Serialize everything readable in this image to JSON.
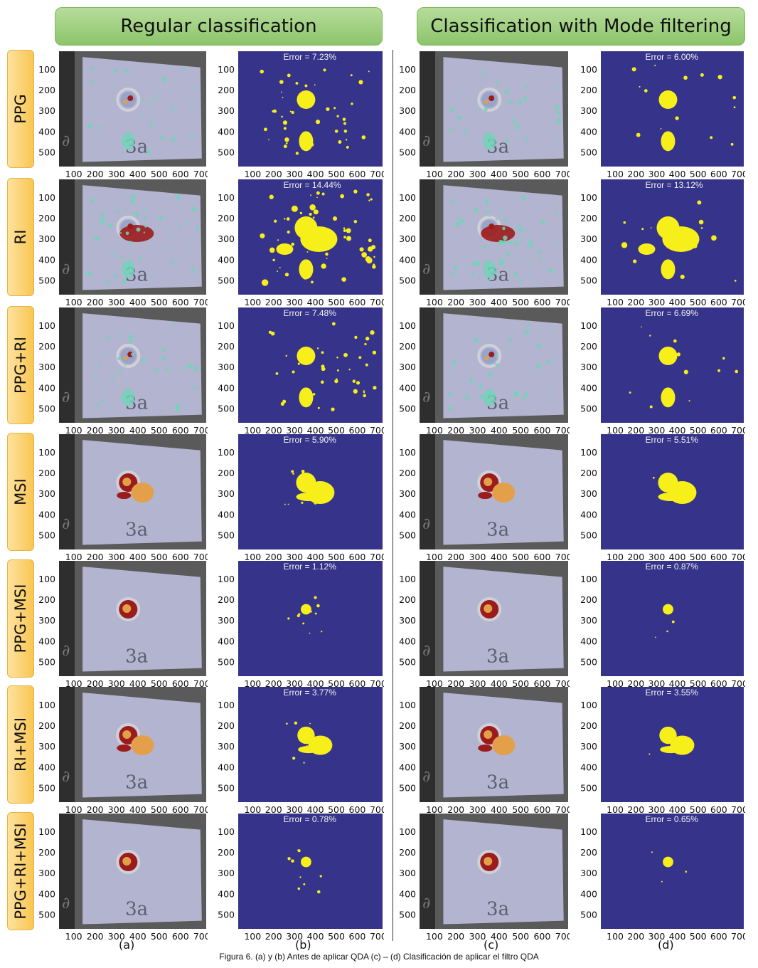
{
  "headers": {
    "left": "Regular classification",
    "right": "Classification with Mode filtering"
  },
  "rows": [
    {
      "label": "PPG",
      "error_b": "Error = 7.23%",
      "error_d": "Error = 6.00%"
    },
    {
      "label": "RI",
      "error_b": "Error = 14.44%",
      "error_d": "Error = 13.12%"
    },
    {
      "label": "PPG+RI",
      "error_b": "Error = 7.48%",
      "error_d": "Error = 6.69%"
    },
    {
      "label": "MSI",
      "error_b": "Error = 5.90%",
      "error_d": "Error = 5.51%"
    },
    {
      "label": "PPG+MSI",
      "error_b": "Error = 1.12%",
      "error_d": "Error = 0.87%"
    },
    {
      "label": "RI+MSI",
      "error_b": "Error = 3.77%",
      "error_d": "Error = 3.55%"
    },
    {
      "label": "PPG+RI+MSI",
      "error_b": "Error = 0.78%",
      "error_d": "Error = 0.65%"
    }
  ],
  "axes": {
    "y_ticks": [
      "100",
      "200",
      "300",
      "400",
      "500"
    ],
    "x_ticks": [
      "100",
      "200",
      "300",
      "400",
      "500",
      "600",
      "700"
    ]
  },
  "column_labels": [
    "(a)",
    "(b)",
    "(c)",
    "(d)"
  ],
  "caption": "Figura 6. (a) y (b) Antes de aplicar QDA (c) – (d) Clasificación de aplicar el filtro QDA",
  "colors": {
    "header_green": "#9fd07f",
    "label_orange": "#f8c652",
    "mask_background": "#36348a",
    "mask_foreground": "#f6ef1a",
    "tumor_red": "#9b1c1c",
    "tissue_orange": "#e3a048",
    "cyan_class": "#6ed6b8"
  }
}
